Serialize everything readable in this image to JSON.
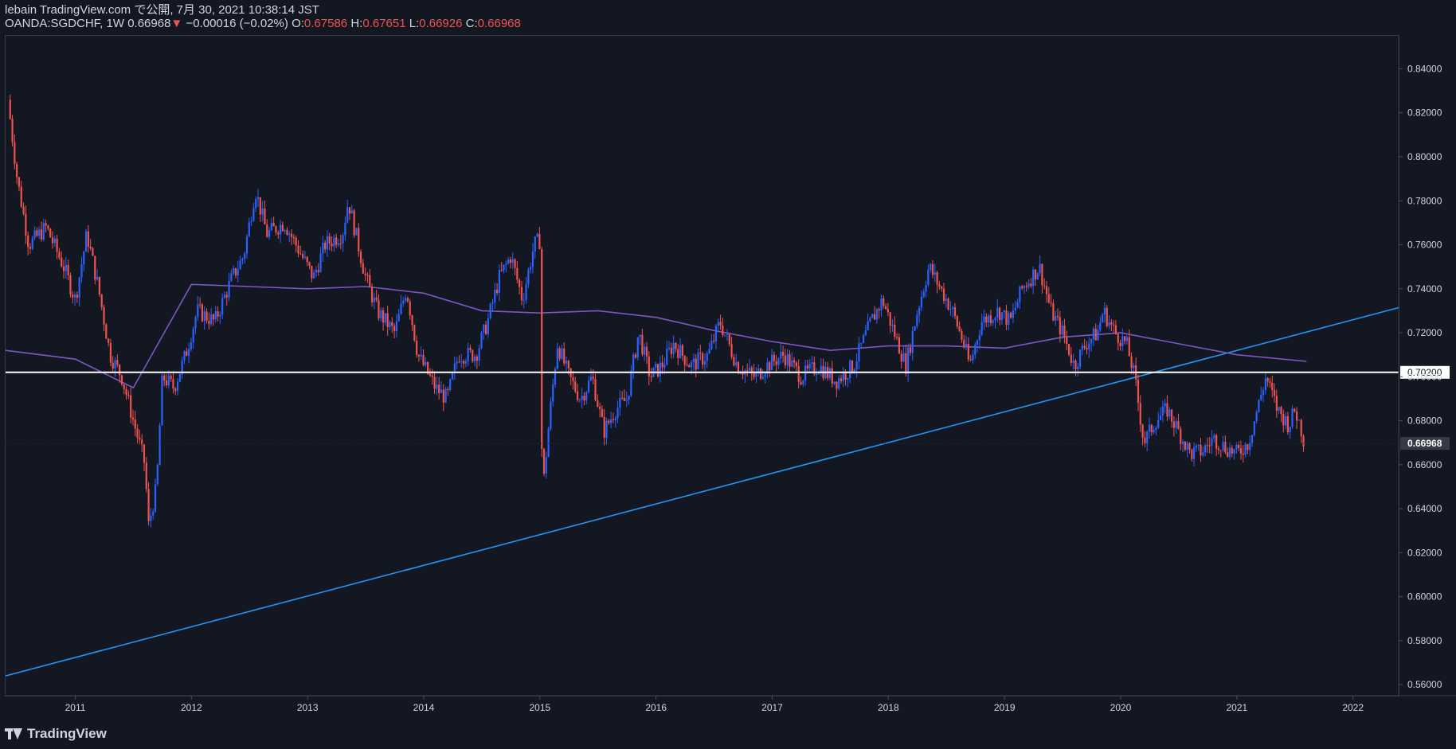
{
  "header": {
    "line1": "lebain TradingView.com で公開, 7月 30, 2021 10:38:14 JST",
    "symbol": "OANDA:SGDCHF, 1W",
    "last": "0.66968",
    "arrow": "▼",
    "change": "−0.00016 (−0.02%)",
    "o_label": "O:",
    "o_value": "0.67586",
    "h_label": "H:",
    "h_value": "0.67651",
    "l_label": "L:",
    "l_value": "0.66926",
    "c_label": "C:",
    "c_value": "0.66968"
  },
  "footer": {
    "brand": "TradingView"
  },
  "colors": {
    "background": "#131722",
    "up": "#2962ff",
    "down": "#ef5350",
    "ma": "#7e57c2",
    "trendline": "#2196f3",
    "level": "#ffffff",
    "axis_text": "#d1d4dc"
  },
  "chart_data": {
    "type": "candlestick",
    "symbol": "OANDA:SGDCHF",
    "timeframe": "1W",
    "x_range": [
      2010.4,
      2022.4
    ],
    "y_range": [
      0.555,
      0.855
    ],
    "x_ticks": [
      "2011",
      "2012",
      "2013",
      "2014",
      "2015",
      "2016",
      "2017",
      "2018",
      "2019",
      "2020",
      "2021",
      "2022"
    ],
    "y_ticks": [
      "0.84000",
      "0.82000",
      "0.80000",
      "0.78000",
      "0.76000",
      "0.74000",
      "0.72000",
      "0.70000",
      "0.68000",
      "0.66000",
      "0.64000",
      "0.62000",
      "0.60000",
      "0.58000",
      "0.56000"
    ],
    "price_path": [
      [
        2010.42,
        0.826
      ],
      [
        2010.5,
        0.79
      ],
      [
        2010.6,
        0.76
      ],
      [
        2010.75,
        0.768
      ],
      [
        2010.9,
        0.75
      ],
      [
        2011.0,
        0.735
      ],
      [
        2011.1,
        0.765
      ],
      [
        2011.2,
        0.74
      ],
      [
        2011.3,
        0.71
      ],
      [
        2011.4,
        0.7
      ],
      [
        2011.5,
        0.68
      ],
      [
        2011.6,
        0.66
      ],
      [
        2011.63,
        0.632
      ],
      [
        2011.7,
        0.65
      ],
      [
        2011.75,
        0.7
      ],
      [
        2011.85,
        0.695
      ],
      [
        2011.95,
        0.71
      ],
      [
        2012.05,
        0.73
      ],
      [
        2012.2,
        0.725
      ],
      [
        2012.35,
        0.745
      ],
      [
        2012.45,
        0.755
      ],
      [
        2012.55,
        0.785
      ],
      [
        2012.65,
        0.765
      ],
      [
        2012.8,
        0.77
      ],
      [
        2012.95,
        0.755
      ],
      [
        2013.05,
        0.745
      ],
      [
        2013.15,
        0.76
      ],
      [
        2013.3,
        0.765
      ],
      [
        2013.35,
        0.78
      ],
      [
        2013.5,
        0.745
      ],
      [
        2013.6,
        0.73
      ],
      [
        2013.75,
        0.72
      ],
      [
        2013.85,
        0.74
      ],
      [
        2013.95,
        0.71
      ],
      [
        2014.1,
        0.695
      ],
      [
        2014.2,
        0.69
      ],
      [
        2014.3,
        0.71
      ],
      [
        2014.45,
        0.71
      ],
      [
        2014.55,
        0.725
      ],
      [
        2014.65,
        0.745
      ],
      [
        2014.75,
        0.755
      ],
      [
        2014.85,
        0.735
      ],
      [
        2014.95,
        0.76
      ],
      [
        2015.0,
        0.762
      ],
      [
        2015.02,
        0.645
      ],
      [
        2015.08,
        0.68
      ],
      [
        2015.15,
        0.715
      ],
      [
        2015.25,
        0.7
      ],
      [
        2015.35,
        0.69
      ],
      [
        2015.45,
        0.7
      ],
      [
        2015.55,
        0.675
      ],
      [
        2015.65,
        0.685
      ],
      [
        2015.75,
        0.69
      ],
      [
        2015.85,
        0.72
      ],
      [
        2015.95,
        0.7
      ],
      [
        2016.05,
        0.705
      ],
      [
        2016.15,
        0.715
      ],
      [
        2016.3,
        0.705
      ],
      [
        2016.45,
        0.71
      ],
      [
        2016.55,
        0.725
      ],
      [
        2016.7,
        0.705
      ],
      [
        2016.85,
        0.7
      ],
      [
        2016.95,
        0.705
      ],
      [
        2017.1,
        0.71
      ],
      [
        2017.25,
        0.7
      ],
      [
        2017.4,
        0.705
      ],
      [
        2017.55,
        0.698
      ],
      [
        2017.7,
        0.705
      ],
      [
        2017.85,
        0.725
      ],
      [
        2017.95,
        0.735
      ],
      [
        2018.05,
        0.72
      ],
      [
        2018.15,
        0.705
      ],
      [
        2018.25,
        0.73
      ],
      [
        2018.35,
        0.75
      ],
      [
        2018.45,
        0.74
      ],
      [
        2018.55,
        0.73
      ],
      [
        2018.65,
        0.715
      ],
      [
        2018.7,
        0.705
      ],
      [
        2018.8,
        0.725
      ],
      [
        2018.95,
        0.73
      ],
      [
        2019.05,
        0.725
      ],
      [
        2019.15,
        0.74
      ],
      [
        2019.3,
        0.75
      ],
      [
        2019.4,
        0.73
      ],
      [
        2019.5,
        0.72
      ],
      [
        2019.6,
        0.705
      ],
      [
        2019.7,
        0.715
      ],
      [
        2019.8,
        0.72
      ],
      [
        2019.85,
        0.73
      ],
      [
        2019.95,
        0.72
      ],
      [
        2020.05,
        0.715
      ],
      [
        2020.12,
        0.7
      ],
      [
        2020.2,
        0.67
      ],
      [
        2020.3,
        0.68
      ],
      [
        2020.4,
        0.685
      ],
      [
        2020.5,
        0.675
      ],
      [
        2020.6,
        0.665
      ],
      [
        2020.7,
        0.666
      ],
      [
        2020.8,
        0.672
      ],
      [
        2020.9,
        0.668
      ],
      [
        2021.0,
        0.665
      ],
      [
        2021.1,
        0.67
      ],
      [
        2021.2,
        0.69
      ],
      [
        2021.25,
        0.7
      ],
      [
        2021.35,
        0.685
      ],
      [
        2021.45,
        0.678
      ],
      [
        2021.5,
        0.685
      ],
      [
        2021.55,
        0.677
      ],
      [
        2021.58,
        0.6697
      ]
    ],
    "moving_average": [
      [
        2010.4,
        0.712
      ],
      [
        2011.0,
        0.708
      ],
      [
        2011.5,
        0.695
      ],
      [
        2012.0,
        0.742
      ],
      [
        2012.5,
        0.741
      ],
      [
        2013.0,
        0.74
      ],
      [
        2013.5,
        0.741
      ],
      [
        2014.0,
        0.738
      ],
      [
        2014.5,
        0.73
      ],
      [
        2015.0,
        0.729
      ],
      [
        2015.5,
        0.73
      ],
      [
        2016.0,
        0.727
      ],
      [
        2016.5,
        0.721
      ],
      [
        2017.0,
        0.716
      ],
      [
        2017.5,
        0.712
      ],
      [
        2018.0,
        0.714
      ],
      [
        2018.5,
        0.714
      ],
      [
        2019.0,
        0.713
      ],
      [
        2019.5,
        0.718
      ],
      [
        2020.0,
        0.72
      ],
      [
        2020.5,
        0.715
      ],
      [
        2021.0,
        0.71
      ],
      [
        2021.6,
        0.707
      ]
    ],
    "trendline": [
      [
        2010.4,
        0.564
      ],
      [
        2022.4,
        0.7315
      ]
    ],
    "horizontal_level": 0.702,
    "horizontal_level_label": "0.70200",
    "last_price_label": "0.66968"
  }
}
